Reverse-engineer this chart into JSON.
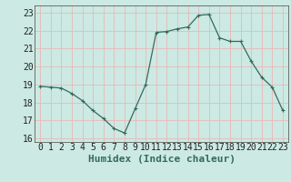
{
  "x": [
    0,
    1,
    2,
    3,
    4,
    5,
    6,
    7,
    8,
    9,
    10,
    11,
    12,
    13,
    14,
    15,
    16,
    17,
    18,
    19,
    20,
    21,
    22,
    23
  ],
  "y": [
    18.9,
    18.85,
    18.8,
    18.5,
    18.1,
    17.55,
    17.1,
    16.55,
    16.3,
    17.65,
    19.0,
    21.9,
    21.95,
    22.1,
    22.2,
    22.85,
    22.9,
    21.6,
    21.4,
    21.4,
    20.3,
    19.4,
    18.85,
    17.55
  ],
  "xlabel": "Humidex (Indice chaleur)",
  "xlim": [
    -0.5,
    23.5
  ],
  "ylim": [
    15.8,
    23.4
  ],
  "yticks": [
    16,
    17,
    18,
    19,
    20,
    21,
    22,
    23
  ],
  "xticks": [
    0,
    1,
    2,
    3,
    4,
    5,
    6,
    7,
    8,
    9,
    10,
    11,
    12,
    13,
    14,
    15,
    16,
    17,
    18,
    19,
    20,
    21,
    22,
    23
  ],
  "bg_color": "#cce9e3",
  "line_color": "#336b5e",
  "grid_color": "#e8b8b8",
  "xlabel_fontsize": 8,
  "tick_fontsize": 7
}
